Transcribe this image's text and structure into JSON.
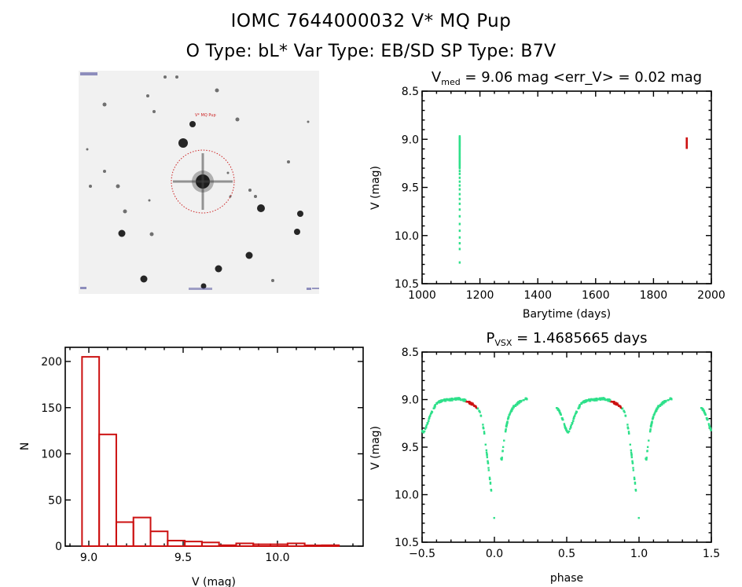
{
  "header": {
    "object_line": "IOMC 7644000032    V* MQ Pup",
    "type_line": "O Type: bL*   Var Type: EB/SD   SP Type: B7V"
  },
  "finder_image": {
    "description": "grayscale star field finder chart with dotted red aperture circle around target star",
    "circle_color": "#cc2222",
    "target_label": "V* MQ Pup",
    "corner_labels": [
      "",
      "",
      "",
      "",
      ""
    ]
  },
  "colors": {
    "measurements": "#2ee08a",
    "highlight": "#cc1111",
    "histogram": "#cc1111",
    "axes": "#000000"
  },
  "chart_data": [
    {
      "id": "lightcurve",
      "type": "scatter",
      "title_main": "V",
      "title_sub": "med",
      "title_rest": " = 9.06 mag <err_V> = 0.02 mag",
      "xlabel": "Barytime (days)",
      "ylabel": "V (mag)",
      "xlim": [
        1000,
        2000
      ],
      "ylim": [
        10.5,
        8.5
      ],
      "xticks": [
        1000,
        1200,
        1400,
        1600,
        1800,
        2000
      ],
      "yticks": [
        8.5,
        9.0,
        9.5,
        10.0,
        10.5
      ],
      "ytick_labels": [
        "8.5",
        "9.0",
        "9.5",
        "10.0",
        "10.5"
      ],
      "series": [
        {
          "name": "measurements",
          "x_value": 1130,
          "v_values": [
            8.97,
            8.98,
            8.99,
            9.0,
            9.01,
            9.02,
            9.03,
            9.04,
            9.05,
            9.06,
            9.07,
            9.08,
            9.1,
            9.12,
            9.15,
            9.18,
            9.2,
            9.23,
            9.26,
            9.3,
            9.33,
            9.36,
            9.4,
            9.44,
            9.48,
            9.52,
            9.57,
            9.62,
            9.67,
            9.73,
            9.8,
            9.88,
            9.95,
            10.02,
            10.08,
            10.14,
            10.28
          ]
        },
        {
          "name": "typical_error_bar",
          "x": 1915,
          "v_range": [
            8.98,
            9.1
          ]
        }
      ]
    },
    {
      "id": "histogram",
      "type": "bar",
      "xlabel": "V (mag)",
      "ylabel": "N",
      "xlim": [
        8.88,
        10.45
      ],
      "ylim": [
        0,
        215
      ],
      "xticks": [
        9.0,
        9.5,
        10.0
      ],
      "xtick_labels": [
        "9.0",
        "9.5",
        "10.0"
      ],
      "yticks": [
        0,
        50,
        100,
        150,
        200
      ],
      "bin_start": 8.964,
      "bin_width": 0.0908,
      "values": [
        205,
        121,
        26,
        31,
        16,
        6,
        5,
        4,
        1,
        3,
        2,
        2,
        3,
        0,
        1
      ]
    },
    {
      "id": "phased",
      "type": "scatter",
      "title_main": "P",
      "title_sub": "VSX",
      "title_rest": " = 1.4685665 days",
      "xlabel": "phase",
      "ylabel": "V (mag)",
      "xlim": [
        -0.5,
        1.5
      ],
      "ylim": [
        10.5,
        8.5
      ],
      "xticks": [
        -0.5,
        0.0,
        0.5,
        1.0,
        1.5
      ],
      "xtick_labels": [
        "-0.5",
        "0.0",
        "0.5",
        "1.0",
        "1.5"
      ],
      "yticks": [
        8.5,
        9.0,
        9.5,
        10.0,
        10.5
      ],
      "ytick_labels": [
        "8.5",
        "9.0",
        "9.5",
        "10.0",
        "10.5"
      ],
      "period_days": 1.4685665,
      "curve_knots": [
        [
          0.0,
          10.28
        ],
        [
          0.01,
          10.15
        ],
        [
          0.02,
          9.95
        ],
        [
          0.03,
          9.75
        ],
        [
          0.04,
          9.55
        ],
        [
          0.05,
          9.65
        ],
        [
          0.06,
          9.5
        ],
        [
          0.08,
          9.3
        ],
        [
          0.1,
          9.17
        ],
        [
          0.13,
          9.08
        ],
        [
          0.17,
          9.03
        ],
        [
          0.22,
          8.99
        ],
        [
          0.43,
          9.08
        ],
        [
          0.46,
          9.15
        ],
        [
          0.49,
          9.3
        ],
        [
          0.51,
          9.35
        ],
        [
          0.53,
          9.28
        ],
        [
          0.56,
          9.15
        ],
        [
          0.6,
          9.04
        ],
        [
          0.64,
          9.01
        ],
        [
          0.7,
          9.0
        ],
        [
          0.75,
          8.99
        ],
        [
          0.8,
          9.01
        ],
        [
          0.85,
          9.05
        ],
        [
          0.89,
          9.1
        ],
        [
          0.91,
          9.18
        ],
        [
          0.93,
          9.35
        ],
        [
          0.95,
          9.6
        ],
        [
          0.97,
          9.85
        ],
        [
          0.99,
          10.1
        ],
        [
          1.0,
          10.28
        ]
      ],
      "gap_phases": [
        [
          0.0,
          0.045
        ],
        [
          0.225,
          0.425
        ]
      ],
      "highlight_phase_range": [
        0.8,
        0.88
      ],
      "highlight_v_range": [
        9.0,
        9.1
      ]
    }
  ]
}
